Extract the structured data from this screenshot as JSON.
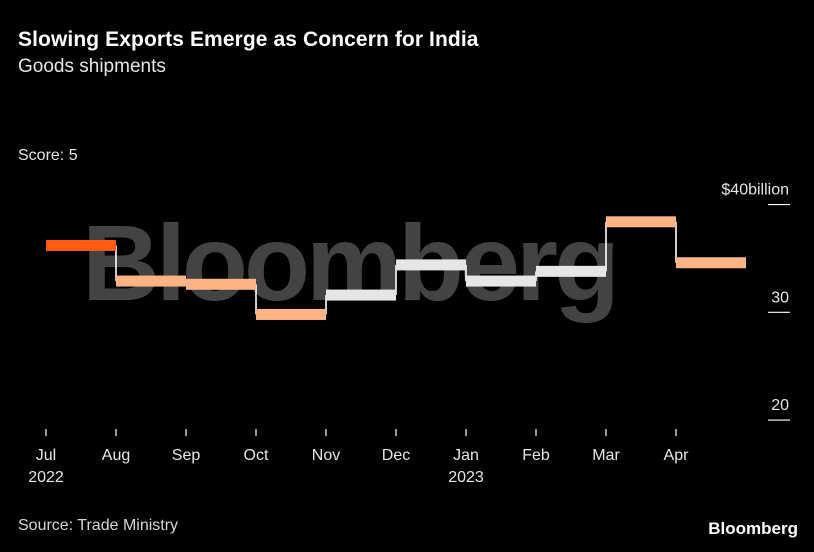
{
  "header": {
    "title": "Slowing Exports Emerge as Concern for India",
    "subtitle": "Goods shipments",
    "score": "Score: 5"
  },
  "footer": {
    "source": "Source: Trade Ministry",
    "brand": "Bloomberg"
  },
  "watermark": "Bloomberg",
  "colors": {
    "background": "#000000",
    "highlight_strong": "#ff5a14",
    "highlight_soft": "#ffb486",
    "neutral_step": "#e6e6e6",
    "connector": "#ffffff",
    "axis_text": "#e6e6e6"
  },
  "chart_data": {
    "type": "line",
    "step": true,
    "y_axis_position": "right",
    "ylim": [
      17.5,
      42
    ],
    "y_ticks": [
      {
        "value": 40,
        "label": "$40billion"
      },
      {
        "value": 30,
        "label": "30"
      },
      {
        "value": 20,
        "label": "20"
      }
    ],
    "x_ticks": [
      {
        "label": "Jul",
        "sublabel": "2022"
      },
      {
        "label": "Aug",
        "sublabel": ""
      },
      {
        "label": "Sep",
        "sublabel": ""
      },
      {
        "label": "Oct",
        "sublabel": ""
      },
      {
        "label": "Nov",
        "sublabel": ""
      },
      {
        "label": "Dec",
        "sublabel": ""
      },
      {
        "label": "Jan",
        "sublabel": "2023"
      },
      {
        "label": "Feb",
        "sublabel": ""
      },
      {
        "label": "Mar",
        "sublabel": ""
      },
      {
        "label": "Apr",
        "sublabel": ""
      }
    ],
    "series": [
      {
        "categories": [
          "Jul",
          "Aug",
          "Sep",
          "Oct",
          "Nov",
          "Dec",
          "Jan",
          "Feb",
          "Mar",
          "Apr"
        ],
        "values": [
          36.2,
          32.9,
          32.6,
          29.8,
          31.6,
          34.4,
          32.9,
          33.8,
          38.4,
          34.6
        ],
        "bar_colors": [
          "#ff5a14",
          "#ffb486",
          "#ffb486",
          "#ffb486",
          "#e6e6e6",
          "#e6e6e6",
          "#e6e6e6",
          "#e6e6e6",
          "#ffb486",
          "#ffb486"
        ]
      }
    ]
  }
}
